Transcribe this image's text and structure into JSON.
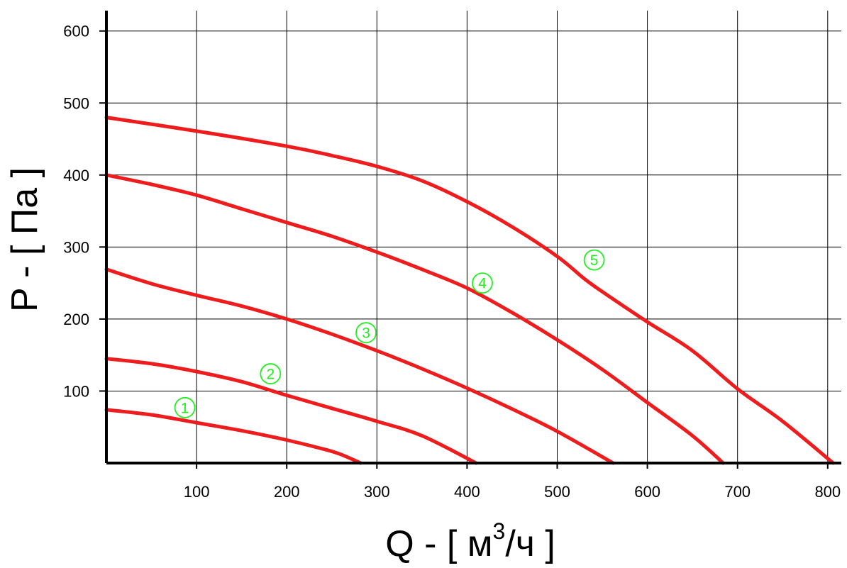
{
  "chart_data": {
    "type": "line",
    "ylabel": "P - [ Па ]",
    "xlabel_parts": {
      "main": "Q - [ м",
      "sup": "3",
      "tail": "/ч ]"
    },
    "xlim": [
      0,
      820
    ],
    "ylim": [
      0,
      630
    ],
    "x_ticks": [
      100,
      200,
      300,
      400,
      500,
      600,
      700,
      800
    ],
    "y_ticks": [
      100,
      200,
      300,
      400,
      500,
      600
    ],
    "grid": true,
    "line_color": "#ee1c1c",
    "marker_color": "#22ee22",
    "series": [
      {
        "marker": "1",
        "marker_at": [
          87,
          77
        ],
        "points": [
          [
            0,
            74
          ],
          [
            50,
            67
          ],
          [
            100,
            56
          ],
          [
            150,
            45
          ],
          [
            200,
            32
          ],
          [
            245,
            18
          ],
          [
            262,
            11
          ],
          [
            282,
            0
          ]
        ]
      },
      {
        "marker": "2",
        "marker_at": [
          182,
          124
        ],
        "points": [
          [
            0,
            145
          ],
          [
            50,
            138
          ],
          [
            100,
            127
          ],
          [
            150,
            113
          ],
          [
            200,
            94
          ],
          [
            250,
            76
          ],
          [
            300,
            58
          ],
          [
            350,
            38
          ],
          [
            410,
            0
          ]
        ]
      },
      {
        "marker": "3",
        "marker_at": [
          288,
          181
        ],
        "points": [
          [
            0,
            269
          ],
          [
            50,
            249
          ],
          [
            100,
            233
          ],
          [
            150,
            218
          ],
          [
            200,
            200
          ],
          [
            250,
            179
          ],
          [
            300,
            156
          ],
          [
            350,
            131
          ],
          [
            400,
            104
          ],
          [
            450,
            75
          ],
          [
            500,
            44
          ],
          [
            562,
            0
          ]
        ]
      },
      {
        "marker": "4",
        "marker_at": [
          417,
          250
        ],
        "points": [
          [
            0,
            400
          ],
          [
            50,
            387
          ],
          [
            100,
            372
          ],
          [
            150,
            353
          ],
          [
            200,
            334
          ],
          [
            250,
            315
          ],
          [
            300,
            293
          ],
          [
            350,
            269
          ],
          [
            400,
            243
          ],
          [
            450,
            209
          ],
          [
            500,
            171
          ],
          [
            550,
            130
          ],
          [
            600,
            84
          ],
          [
            650,
            38
          ],
          [
            684,
            0
          ]
        ]
      },
      {
        "marker": "5",
        "marker_at": [
          541,
          282
        ],
        "points": [
          [
            0,
            480
          ],
          [
            100,
            461
          ],
          [
            200,
            440
          ],
          [
            250,
            427
          ],
          [
            300,
            412
          ],
          [
            350,
            392
          ],
          [
            400,
            363
          ],
          [
            450,
            328
          ],
          [
            500,
            287
          ],
          [
            530,
            256
          ],
          [
            550,
            238
          ],
          [
            600,
            196
          ],
          [
            650,
            156
          ],
          [
            700,
            103
          ],
          [
            750,
            58
          ],
          [
            806,
            0
          ]
        ]
      }
    ]
  }
}
